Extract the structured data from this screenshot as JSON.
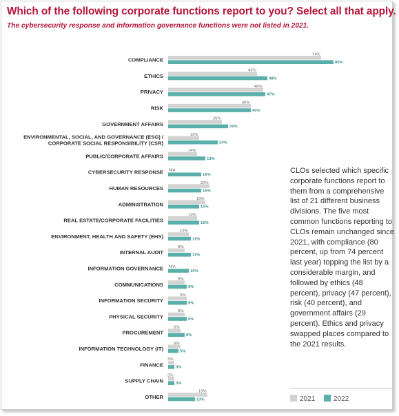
{
  "title": "Which of the following corporate functions report to you? Select all that apply.",
  "subtitle": "The cybersecurity response and information governance functions were not listed in 2021.",
  "description": "CLOs selected which specific corporate functions report to them from a comprehensive list of 21 different business divisions. The five most common functions reporting to CLOs remain unchanged since 2021, with compliance (80 percent, up from 74 percent last year) topping the list by a considerable margin, and followed by ethics (48 percent), privacy (47 percent), risk (40 percent), and government affairs (29 percent). Ethics and privacy swapped places compared to the 2021 results.",
  "colors": {
    "accent": "#b5173a",
    "y2021": "#d3d3d3",
    "y2022": "#5aafab"
  },
  "chart_data": {
    "type": "bar",
    "orientation": "horizontal",
    "categories": [
      [
        "COMPLIANCE"
      ],
      [
        "ETHICS"
      ],
      [
        "PRIVACY"
      ],
      [
        "RISK"
      ],
      [
        "GOVERNMENT AFFAIRS"
      ],
      [
        "ENVIRONMENTAL, SOCIAL, AND GOVERNANCE (ESG) /",
        "CORPORATE SOCIAL RESPONSIBILITY (CSR)"
      ],
      [
        "PUBLIC/CORPORATE AFFAIRS"
      ],
      [
        "CYBERSECURITY RESPONSE"
      ],
      [
        "HUMAN RESOURCES"
      ],
      [
        "ADMINISTRATION"
      ],
      [
        "REAL ESTATE/CORPORATE FACILITIES"
      ],
      [
        "ENVIRONMENT, HEALTH AND SAFETY (EHS)"
      ],
      [
        "INTERNAL AUDIT"
      ],
      [
        "INFORMATION GOVERNANCE"
      ],
      [
        "COMMUNICATIONS"
      ],
      [
        "INFORMATION SECURITY"
      ],
      [
        "PHYSICAL SECURITY"
      ],
      [
        "PROCUREMENT"
      ],
      [
        "INFORMATION TECHNOLOGY (IT)"
      ],
      [
        "FINANCE"
      ],
      [
        "SUPPLY CHAIN"
      ],
      [
        "OTHER"
      ]
    ],
    "series": [
      {
        "name": "2021",
        "values": [
          74,
          43,
          46,
          40,
          26,
          15,
          14,
          null,
          20,
          18,
          14,
          10,
          8,
          null,
          8,
          9,
          8,
          6,
          6,
          3,
          3,
          19
        ]
      },
      {
        "name": "2022",
        "values": [
          80,
          48,
          47,
          40,
          29,
          24,
          18,
          16,
          16,
          15,
          15,
          11,
          11,
          10,
          9,
          9,
          9,
          8,
          5,
          3,
          3,
          13
        ]
      }
    ],
    "na_label": "N/A",
    "unit_suffix": "%",
    "legend": [
      "2021",
      "2022"
    ],
    "xlim": [
      0,
      80
    ]
  }
}
